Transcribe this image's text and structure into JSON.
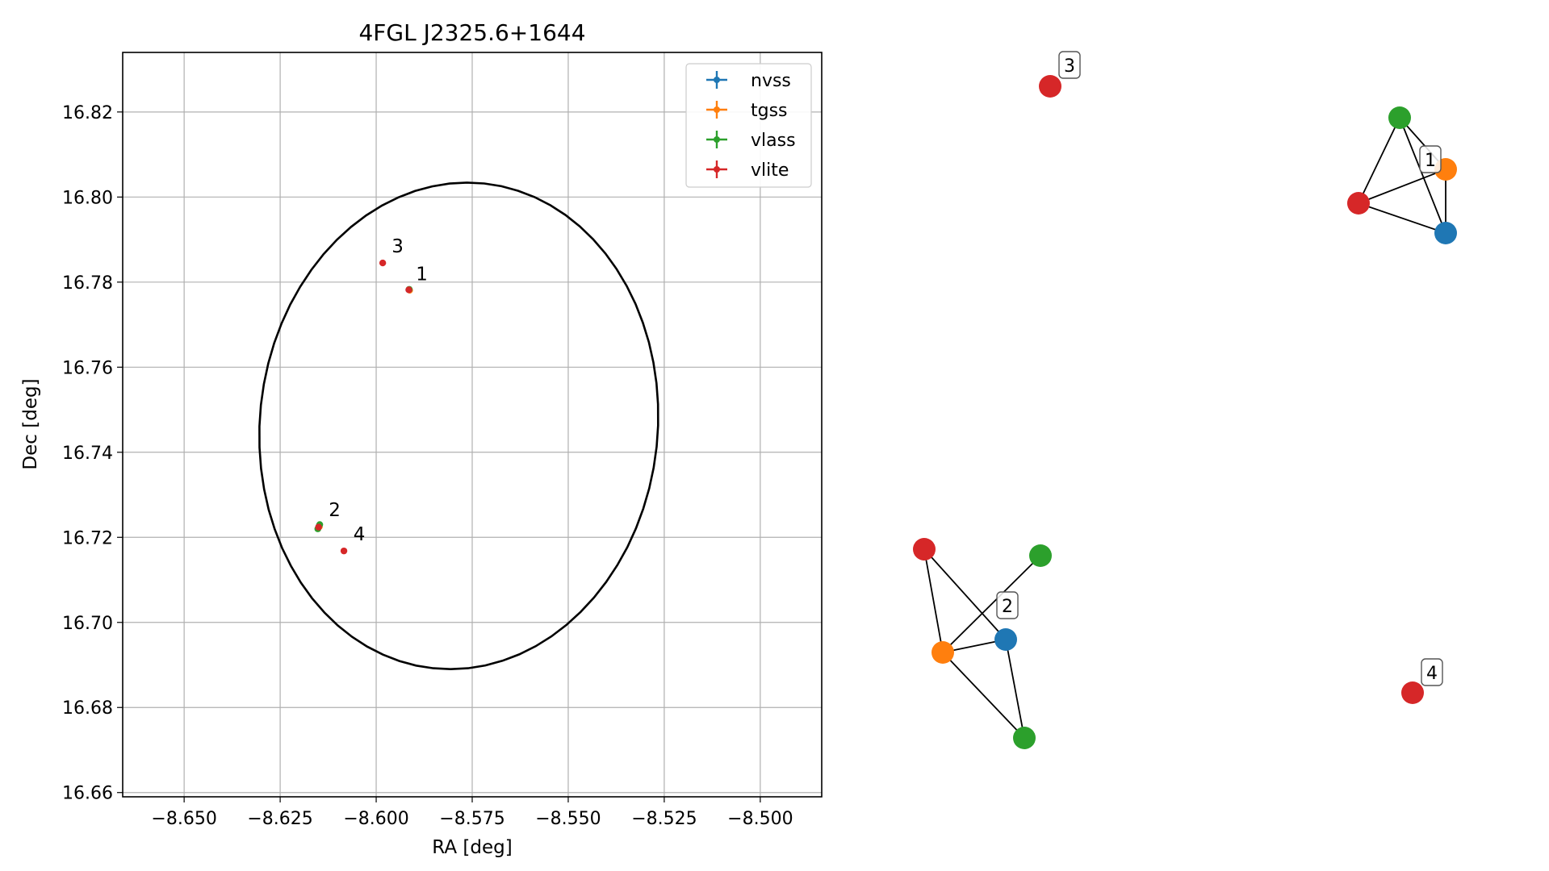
{
  "chart_data": {
    "type": "scatter",
    "title": "4FGL J2325.6+1644",
    "xlabel": "RA [deg]",
    "ylabel": "Dec [deg]",
    "xlim": [
      -8.666,
      -8.484
    ],
    "ylim": [
      16.659,
      16.834
    ],
    "xticks": [
      -8.65,
      -8.625,
      -8.6,
      -8.575,
      -8.55,
      -8.525,
      -8.5
    ],
    "xtick_labels": [
      "−8.650",
      "−8.625",
      "−8.600",
      "−8.575",
      "−8.550",
      "−8.525",
      "−8.500"
    ],
    "yticks": [
      16.66,
      16.68,
      16.7,
      16.72,
      16.74,
      16.76,
      16.78,
      16.8,
      16.82
    ],
    "ytick_labels": [
      "16.66",
      "16.68",
      "16.70",
      "16.72",
      "16.74",
      "16.76",
      "16.78",
      "16.80",
      "16.82"
    ],
    "grid": true,
    "legend_position": "top-right",
    "series": [
      {
        "name": "nvss",
        "color": "#1f77b4",
        "x": [
          -8.5915,
          -8.6149
        ],
        "y": [
          16.7782,
          16.7226
        ]
      },
      {
        "name": "tgss",
        "color": "#ff7f0e",
        "x": [
          -8.5913,
          -8.6148
        ],
        "y": [
          16.7781,
          16.7225
        ]
      },
      {
        "name": "vlass",
        "color": "#2ca02c",
        "x": [
          -8.5914,
          -8.6152,
          -8.6147
        ],
        "y": [
          16.7783,
          16.722,
          16.723
        ]
      },
      {
        "name": "vlite",
        "color": "#d62728",
        "x": [
          -8.5915,
          -8.5983,
          -8.615,
          -8.6084
        ],
        "y": [
          16.7782,
          16.7845,
          16.7224,
          16.7168
        ]
      }
    ],
    "ellipse": {
      "center_ra": -8.5785,
      "center_dec": 16.7462,
      "ra_half_width": 0.0518,
      "dec_half_height": 0.0573,
      "angle_deg": 6
    },
    "annotations": [
      {
        "text": "1",
        "x": -8.5905,
        "y": 16.7793
      },
      {
        "text": "2",
        "x": -8.6132,
        "y": 16.7238
      },
      {
        "text": "3",
        "x": -8.5968,
        "y": 16.7858
      },
      {
        "text": "4",
        "x": -8.6068,
        "y": 16.7182
      }
    ]
  },
  "graph": {
    "nodes": [
      {
        "id": "g1-vlass",
        "color": "#2ca02c"
      },
      {
        "id": "g1-tgss",
        "color": "#ff7f0e"
      },
      {
        "id": "g1-vlite",
        "color": "#d62728"
      },
      {
        "id": "g1-nvss",
        "color": "#1f77b4"
      },
      {
        "id": "g3-vlite",
        "color": "#d62728"
      },
      {
        "id": "g2-vlite",
        "color": "#d62728"
      },
      {
        "id": "g2-vlass-a",
        "color": "#2ca02c"
      },
      {
        "id": "g2-nvss",
        "color": "#1f77b4"
      },
      {
        "id": "g2-tgss",
        "color": "#ff7f0e"
      },
      {
        "id": "g2-vlass-b",
        "color": "#2ca02c"
      },
      {
        "id": "g4-vlite",
        "color": "#d62728"
      }
    ],
    "edges": [
      [
        "g1-vlass",
        "g1-vlite"
      ],
      [
        "g1-vlass",
        "g1-nvss"
      ],
      [
        "g1-vlass",
        "g1-tgss"
      ],
      [
        "g1-vlite",
        "g1-tgss"
      ],
      [
        "g1-vlite",
        "g1-nvss"
      ],
      [
        "g1-tgss",
        "g1-nvss"
      ],
      [
        "g2-vlite",
        "g2-tgss"
      ],
      [
        "g2-vlite",
        "g2-nvss"
      ],
      [
        "g2-tgss",
        "g2-vlass-a"
      ],
      [
        "g2-tgss",
        "g2-nvss"
      ],
      [
        "g2-tgss",
        "g2-vlass-b"
      ],
      [
        "g2-nvss",
        "g2-vlass-b"
      ]
    ],
    "labels": [
      {
        "text": "1",
        "node": "g1-tgss"
      },
      {
        "text": "2",
        "node": "g2-nvss"
      },
      {
        "text": "3",
        "node": "g3-vlite"
      },
      {
        "text": "4",
        "node": "g4-vlite"
      }
    ]
  }
}
